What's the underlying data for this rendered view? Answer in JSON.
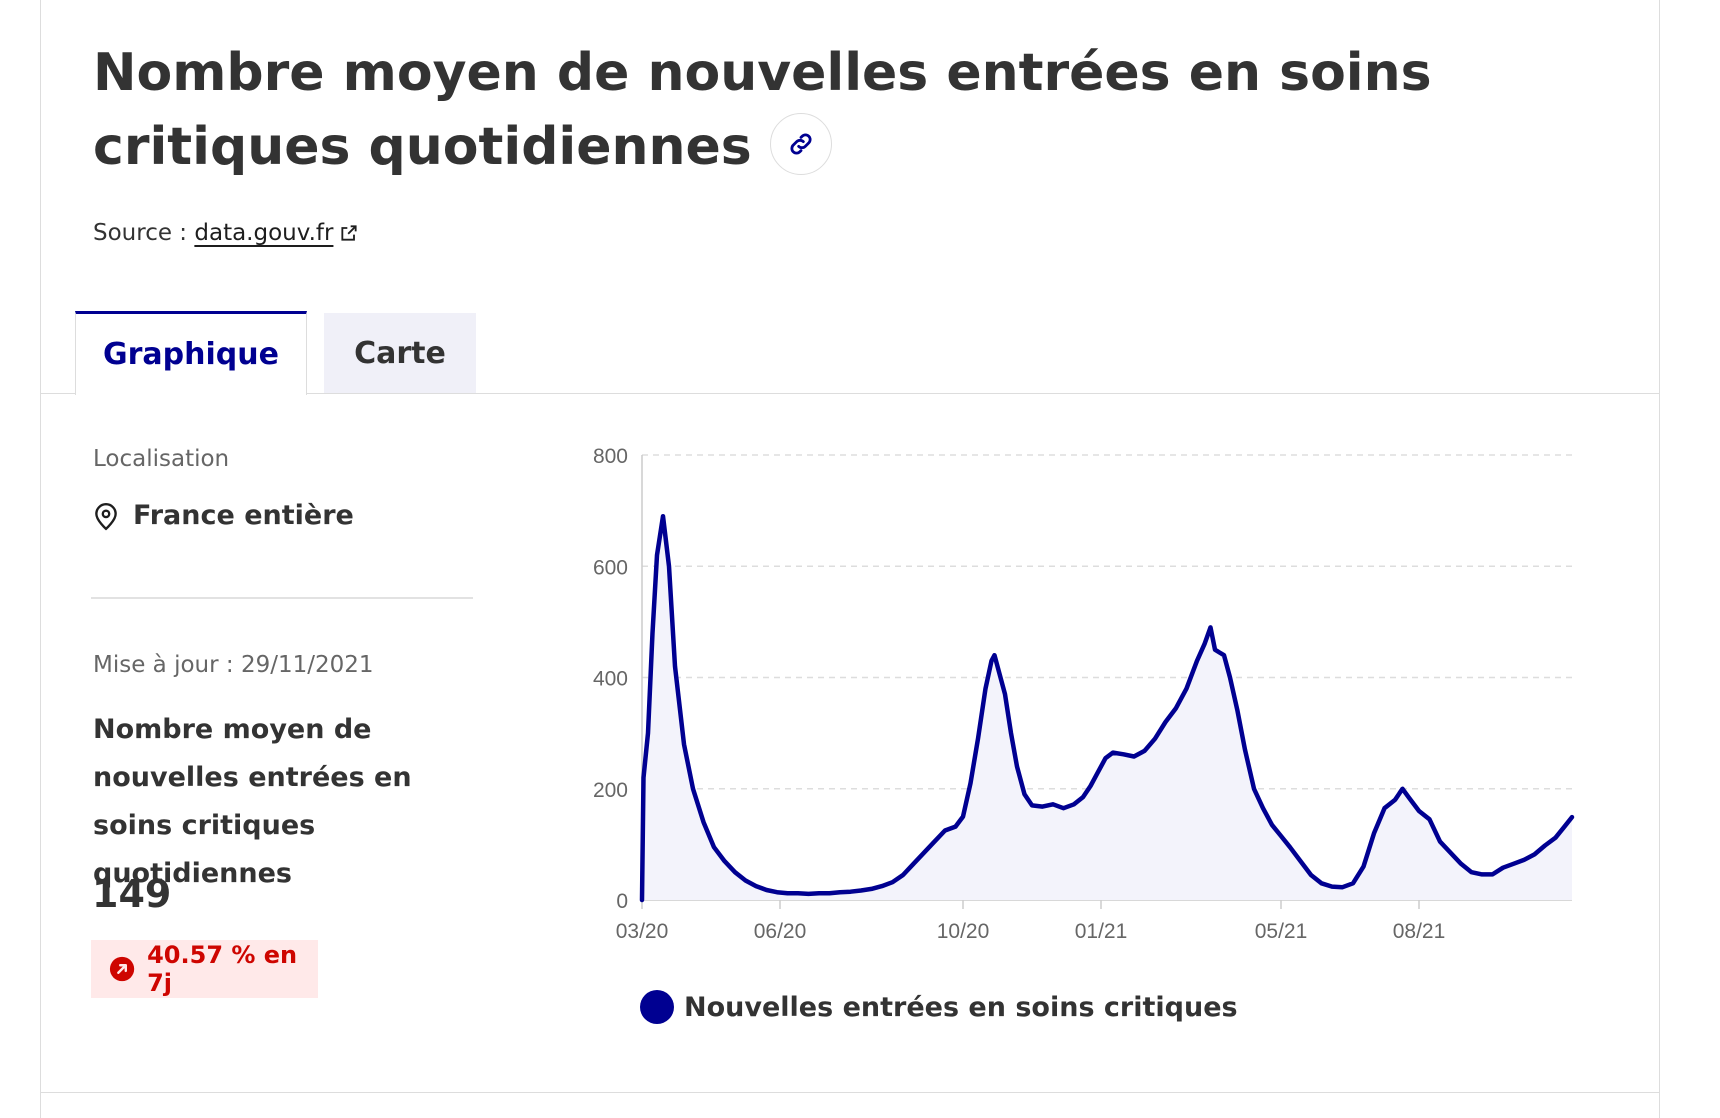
{
  "header": {
    "title": "Nombre moyen de nouvelles entrées en soins critiques quotidiennes",
    "source_label": "Source :",
    "source_link": "data.gouv.fr"
  },
  "tabs": [
    {
      "label": "Graphique",
      "active": true
    },
    {
      "label": "Carte",
      "active": false
    }
  ],
  "sidebar": {
    "location_label": "Localisation",
    "location_value": "France entière",
    "update_text": "Mise à jour : 29/11/2021",
    "kpi_title": "Nombre moyen de nouvelles entrées en soins critiques quotidiennes",
    "kpi_value": "149",
    "kpi_change": "40.57 % en 7j",
    "kpi_change_color": "#ce0500"
  },
  "colors": {
    "accent": "#000091",
    "area_fill": "#f3f3fb",
    "grid": "#dddddd"
  },
  "chart_data": {
    "type": "area",
    "title": "",
    "xlabel": "",
    "ylabel": "",
    "ylim": [
      0,
      800
    ],
    "yticks": [
      0,
      200,
      400,
      600,
      800
    ],
    "grid": true,
    "legend_position": "bottom",
    "xlim": [
      "2020-03-19",
      "2021-11-29"
    ],
    "xticks": [
      {
        "date": "2020-03-19",
        "label": "03/20"
      },
      {
        "date": "2020-06-19",
        "label": "06/20"
      },
      {
        "date": "2020-10-19",
        "label": "10/20"
      },
      {
        "date": "2021-01-19",
        "label": "01/21"
      },
      {
        "date": "2021-05-19",
        "label": "05/21"
      },
      {
        "date": "2021-08-19",
        "label": "08/21"
      }
    ],
    "series": [
      {
        "name": "Nouvelles entrées en soins critiques",
        "points": [
          [
            "2020-03-19",
            0
          ],
          [
            "2020-03-20",
            220
          ],
          [
            "2020-03-23",
            300
          ],
          [
            "2020-03-26",
            480
          ],
          [
            "2020-03-29",
            620
          ],
          [
            "2020-04-02",
            690
          ],
          [
            "2020-04-06",
            600
          ],
          [
            "2020-04-10",
            420
          ],
          [
            "2020-04-16",
            280
          ],
          [
            "2020-04-22",
            200
          ],
          [
            "2020-04-29",
            140
          ],
          [
            "2020-05-06",
            95
          ],
          [
            "2020-05-13",
            70
          ],
          [
            "2020-05-20",
            50
          ],
          [
            "2020-05-27",
            35
          ],
          [
            "2020-06-03",
            25
          ],
          [
            "2020-06-10",
            18
          ],
          [
            "2020-06-17",
            14
          ],
          [
            "2020-06-24",
            12
          ],
          [
            "2020-07-01",
            12
          ],
          [
            "2020-07-08",
            11
          ],
          [
            "2020-07-15",
            12
          ],
          [
            "2020-07-22",
            12
          ],
          [
            "2020-07-29",
            14
          ],
          [
            "2020-08-05",
            15
          ],
          [
            "2020-08-12",
            17
          ],
          [
            "2020-08-19",
            20
          ],
          [
            "2020-08-26",
            25
          ],
          [
            "2020-09-02",
            32
          ],
          [
            "2020-09-09",
            45
          ],
          [
            "2020-09-16",
            65
          ],
          [
            "2020-09-23",
            85
          ],
          [
            "2020-09-30",
            105
          ],
          [
            "2020-10-07",
            125
          ],
          [
            "2020-10-14",
            132
          ],
          [
            "2020-10-19",
            150
          ],
          [
            "2020-10-24",
            210
          ],
          [
            "2020-10-29",
            290
          ],
          [
            "2020-11-03",
            380
          ],
          [
            "2020-11-07",
            430
          ],
          [
            "2020-11-09",
            440
          ],
          [
            "2020-11-12",
            410
          ],
          [
            "2020-11-16",
            370
          ],
          [
            "2020-11-20",
            300
          ],
          [
            "2020-11-24",
            240
          ],
          [
            "2020-11-29",
            190
          ],
          [
            "2020-12-04",
            170
          ],
          [
            "2020-12-11",
            168
          ],
          [
            "2020-12-18",
            172
          ],
          [
            "2020-12-25",
            165
          ],
          [
            "2021-01-01",
            172
          ],
          [
            "2021-01-07",
            185
          ],
          [
            "2021-01-12",
            205
          ],
          [
            "2021-01-17",
            230
          ],
          [
            "2021-01-22",
            255
          ],
          [
            "2021-01-27",
            265
          ],
          [
            "2021-02-03",
            262
          ],
          [
            "2021-02-10",
            258
          ],
          [
            "2021-02-17",
            268
          ],
          [
            "2021-02-24",
            290
          ],
          [
            "2021-03-03",
            320
          ],
          [
            "2021-03-10",
            345
          ],
          [
            "2021-03-17",
            380
          ],
          [
            "2021-03-24",
            430
          ],
          [
            "2021-03-29",
            460
          ],
          [
            "2021-04-02",
            490
          ],
          [
            "2021-04-05",
            450
          ],
          [
            "2021-04-08",
            445
          ],
          [
            "2021-04-11",
            440
          ],
          [
            "2021-04-15",
            400
          ],
          [
            "2021-04-20",
            340
          ],
          [
            "2021-04-25",
            270
          ],
          [
            "2021-05-01",
            200
          ],
          [
            "2021-05-07",
            165
          ],
          [
            "2021-05-13",
            135
          ],
          [
            "2021-05-19",
            115
          ],
          [
            "2021-05-25",
            95
          ],
          [
            "2021-06-01",
            70
          ],
          [
            "2021-06-08",
            45
          ],
          [
            "2021-06-15",
            30
          ],
          [
            "2021-06-22",
            24
          ],
          [
            "2021-06-29",
            23
          ],
          [
            "2021-07-06",
            30
          ],
          [
            "2021-07-13",
            60
          ],
          [
            "2021-07-20",
            120
          ],
          [
            "2021-07-27",
            165
          ],
          [
            "2021-08-03",
            180
          ],
          [
            "2021-08-08",
            200
          ],
          [
            "2021-08-12",
            185
          ],
          [
            "2021-08-19",
            160
          ],
          [
            "2021-08-26",
            145
          ],
          [
            "2021-09-02",
            105
          ],
          [
            "2021-09-09",
            85
          ],
          [
            "2021-09-16",
            65
          ],
          [
            "2021-09-23",
            50
          ],
          [
            "2021-09-30",
            46
          ],
          [
            "2021-10-07",
            46
          ],
          [
            "2021-10-14",
            58
          ],
          [
            "2021-10-21",
            65
          ],
          [
            "2021-10-28",
            72
          ],
          [
            "2021-11-04",
            82
          ],
          [
            "2021-11-11",
            98
          ],
          [
            "2021-11-18",
            112
          ],
          [
            "2021-11-24",
            132
          ],
          [
            "2021-11-29",
            149
          ]
        ]
      }
    ]
  }
}
